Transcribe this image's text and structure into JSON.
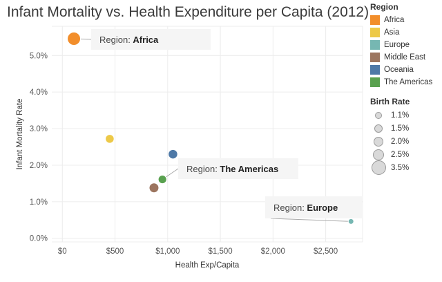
{
  "chart_data": {
    "type": "scatter",
    "title": "Infant Mortality vs. Health Expenditure per Capita (2012)",
    "xlabel": "Health Exp/Capita",
    "ylabel": "Infant Mortality Rate",
    "xlim": [
      -100,
      2850
    ],
    "ylim": [
      -0.001,
      0.058
    ],
    "x_ticks": [
      0,
      500,
      1000,
      1500,
      2000,
      2500
    ],
    "x_tick_labels": [
      "$0",
      "$500",
      "$1,000",
      "$1,500",
      "$2,000",
      "$2,500"
    ],
    "y_ticks": [
      0.0,
      0.01,
      0.02,
      0.03,
      0.04,
      0.05
    ],
    "y_tick_labels": [
      "0.0%",
      "1.0%",
      "2.0%",
      "3.0%",
      "4.0%",
      "5.0%"
    ],
    "grid": true,
    "series": [
      {
        "name": "Africa",
        "color": "#F28E2B",
        "points": [
          {
            "x": 110,
            "y": 0.0546,
            "birth_rate": 0.035
          }
        ]
      },
      {
        "name": "Asia",
        "color": "#EDC948",
        "points": [
          {
            "x": 450,
            "y": 0.0272,
            "birth_rate": 0.021
          }
        ]
      },
      {
        "name": "Europe",
        "color": "#76B7B2",
        "points": [
          {
            "x": 2740,
            "y": 0.0046,
            "birth_rate": 0.011
          }
        ]
      },
      {
        "name": "Middle East",
        "color": "#9C755F",
        "points": [
          {
            "x": 870,
            "y": 0.0138,
            "birth_rate": 0.024
          }
        ]
      },
      {
        "name": "Oceania",
        "color": "#4E79A7",
        "points": [
          {
            "x": 1050,
            "y": 0.023,
            "birth_rate": 0.023
          }
        ]
      },
      {
        "name": "The Americas",
        "color": "#59A14F",
        "points": [
          {
            "x": 950,
            "y": 0.0161,
            "birth_rate": 0.02
          }
        ]
      }
    ],
    "annotations": [
      {
        "prefix": "Region: ",
        "value": "Africa"
      },
      {
        "prefix": "Region: ",
        "value": "The Americas"
      },
      {
        "prefix": "Region: ",
        "value": "Europe"
      }
    ],
    "legend": {
      "color_title": "Region",
      "size_title": "Birth Rate",
      "size_items": [
        {
          "label": "1.1%",
          "value": 0.011
        },
        {
          "label": "1.5%",
          "value": 0.015
        },
        {
          "label": "2.0%",
          "value": 0.02
        },
        {
          "label": "2.5%",
          "value": 0.025
        },
        {
          "label": "3.5%",
          "value": 0.035
        }
      ]
    }
  }
}
